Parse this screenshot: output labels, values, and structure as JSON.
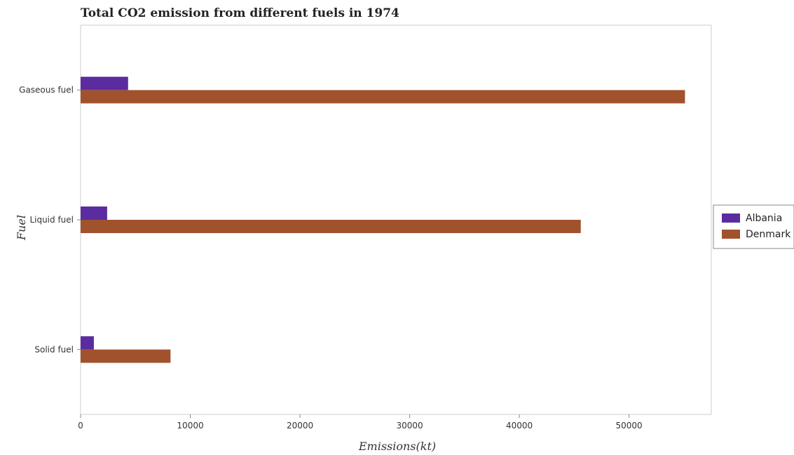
{
  "chart_data": {
    "type": "bar",
    "orientation": "horizontal",
    "title": "Total CO2 emission from different fuels in 1974",
    "xlabel": "Emissions(kt)",
    "ylabel": "Fuel",
    "categories": [
      "Gaseous fuel",
      "Liquid fuel",
      "Solid fuel"
    ],
    "series": [
      {
        "name": "Albania",
        "color": "#5a2ca0",
        "values": [
          4330,
          2420,
          1210
        ]
      },
      {
        "name": "Denmark",
        "color": "#a0522d",
        "values": [
          55100,
          45600,
          8200
        ]
      }
    ],
    "xlim": [
      0,
      57500
    ],
    "xticks": [
      0,
      10000,
      20000,
      30000,
      40000,
      50000
    ],
    "xtick_labels": [
      "0",
      "10000",
      "20000",
      "30000",
      "40000",
      "50000"
    ],
    "grid": false,
    "legend_position": "right"
  }
}
